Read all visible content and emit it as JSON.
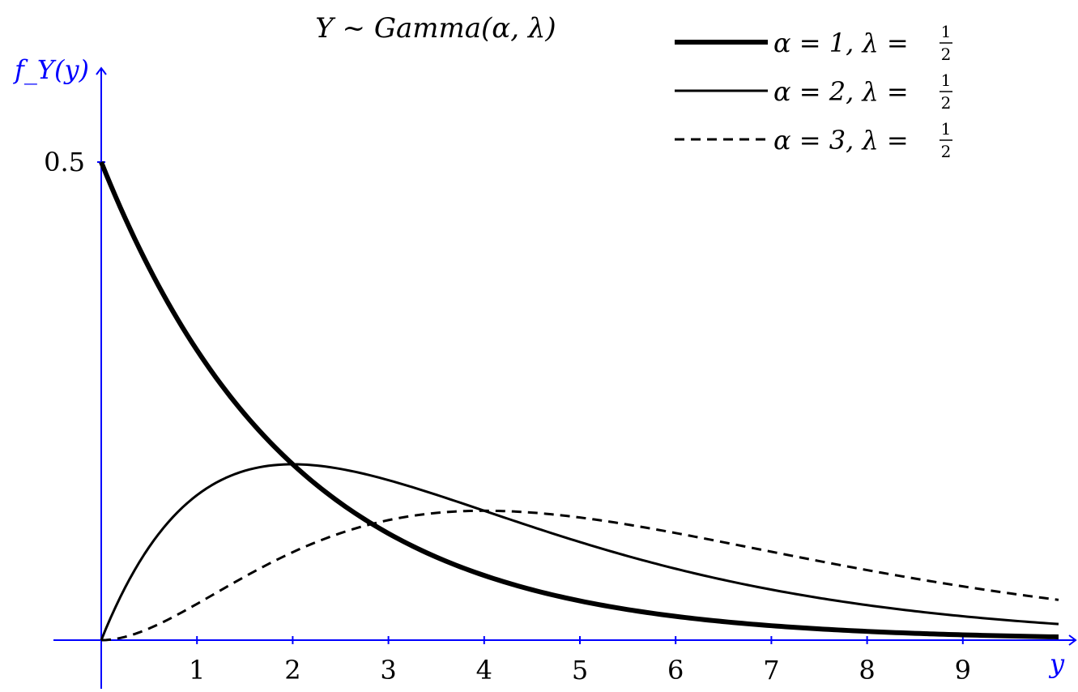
{
  "chart_data": {
    "type": "line",
    "title": "Y ~ Gamma(α, λ)",
    "ylabel": "f_Y(y)",
    "xlabel": "y",
    "xlim": [
      0,
      10
    ],
    "ylim": [
      0,
      0.5
    ],
    "x_ticks": [
      1,
      2,
      3,
      4,
      5,
      6,
      7,
      8,
      9
    ],
    "y_ticks": [
      0.5
    ],
    "y_tick_labels": [
      "0.5"
    ],
    "grid": false,
    "legend_position": "top-right",
    "axis_color": "#0000ff",
    "series": [
      {
        "name": "α = 1, λ = 1/2",
        "legend_prefix": "α = 1, λ = ",
        "style": "thick",
        "alpha": 1,
        "lambda": 0.5,
        "x": [
          0,
          0.5,
          1,
          1.5,
          2,
          2.5,
          3,
          3.5,
          4,
          4.5,
          5,
          5.5,
          6,
          6.5,
          7,
          7.5,
          8,
          8.5,
          9,
          9.5,
          10
        ],
        "y": [
          0.5,
          0.389,
          0.303,
          0.236,
          0.184,
          0.143,
          0.112,
          0.087,
          0.068,
          0.053,
          0.041,
          0.032,
          0.025,
          0.019,
          0.015,
          0.012,
          0.009,
          0.007,
          0.006,
          0.004,
          0.003
        ]
      },
      {
        "name": "α = 2, λ = 1/2",
        "legend_prefix": "α = 2, λ = ",
        "style": "solid",
        "alpha": 2,
        "lambda": 0.5,
        "x": [
          0,
          0.5,
          1,
          1.5,
          2,
          2.5,
          3,
          3.5,
          4,
          4.5,
          5,
          5.5,
          6,
          6.5,
          7,
          7.5,
          8,
          8.5,
          9,
          9.5,
          10
        ],
        "y": [
          0,
          0.097,
          0.152,
          0.177,
          0.184,
          0.179,
          0.167,
          0.152,
          0.135,
          0.119,
          0.103,
          0.088,
          0.075,
          0.063,
          0.053,
          0.044,
          0.037,
          0.03,
          0.025,
          0.02,
          0.017
        ]
      },
      {
        "name": "α = 3, λ = 1/2",
        "legend_prefix": "α = 3, λ = ",
        "style": "dashed",
        "alpha": 3,
        "lambda": 0.5,
        "x": [
          0,
          0.5,
          1,
          1.5,
          2,
          2.5,
          3,
          3.5,
          4,
          4.5,
          5,
          5.5,
          6,
          6.5,
          7,
          7.5,
          8,
          8.5,
          9,
          9.5,
          10
        ],
        "y": [
          0,
          0.012,
          0.038,
          0.066,
          0.092,
          0.112,
          0.126,
          0.133,
          0.135,
          0.134,
          0.128,
          0.121,
          0.112,
          0.103,
          0.092,
          0.083,
          0.073,
          0.065,
          0.056,
          0.049,
          0.042
        ]
      }
    ],
    "legend_fraction": {
      "numerator": "1",
      "denominator": "2"
    }
  }
}
